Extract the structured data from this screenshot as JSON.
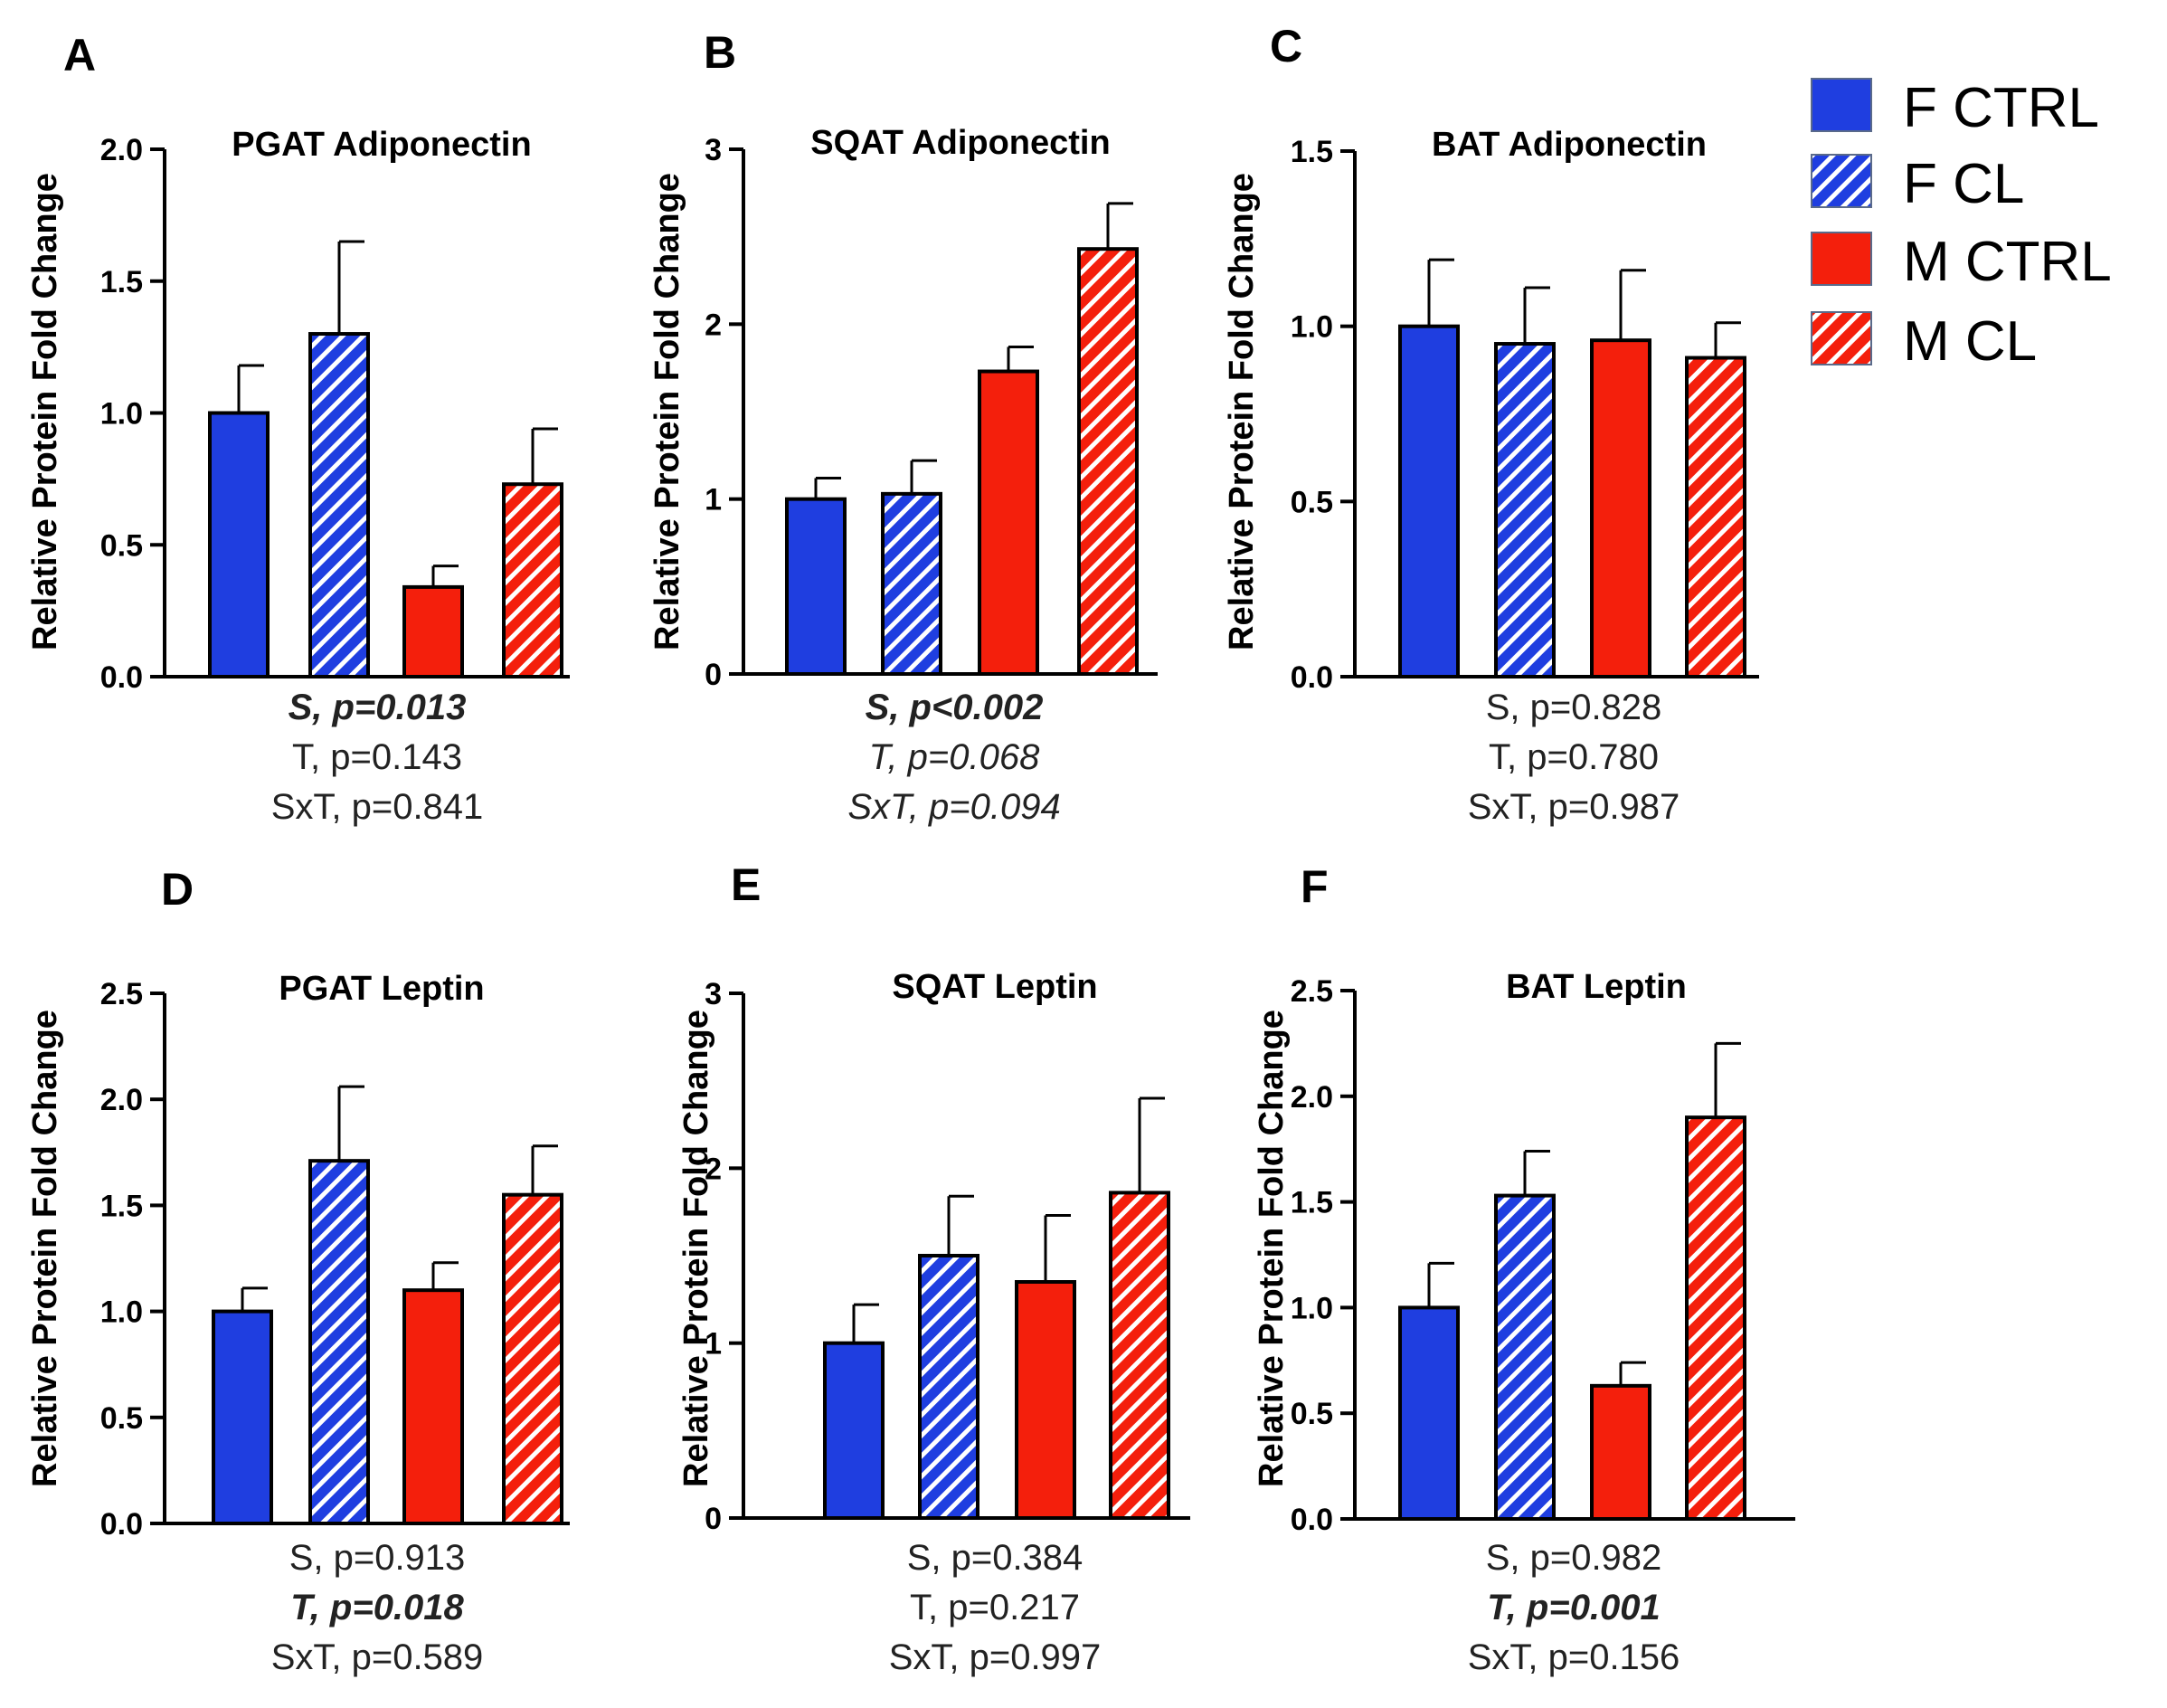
{
  "colors": {
    "blue": "#1f3ee0",
    "red": "#f41f0c",
    "stroke": "#000000"
  },
  "legend": {
    "items": [
      {
        "label": "F CTRL",
        "color": "#1f3ee0",
        "pattern": "solid"
      },
      {
        "label": "F CL",
        "color": "#1f3ee0",
        "pattern": "hatch"
      },
      {
        "label": "M CTRL",
        "color": "#f41f0c",
        "pattern": "solid"
      },
      {
        "label": "M CL",
        "color": "#f41f0c",
        "pattern": "hatch"
      }
    ]
  },
  "chart_data": [
    {
      "panel": "A",
      "type": "bar",
      "title": "PGAT Adiponectin",
      "ylabel": "Relative Protein Fold Change",
      "categories": [
        "F CTRL",
        "F CL",
        "M CTRL",
        "M CL"
      ],
      "values": [
        1.0,
        1.3,
        0.34,
        0.73
      ],
      "errors": [
        0.18,
        0.35,
        0.08,
        0.21
      ],
      "ylim": [
        0,
        2.0
      ],
      "ticks": [
        0,
        0.5,
        1.0,
        1.5,
        2.0
      ],
      "tick_labels": [
        "0.0",
        "0.5",
        "1.0",
        "1.5",
        "2.0"
      ],
      "stats": [
        {
          "text": "S, p=0.013",
          "bold": true,
          "italic": true
        },
        {
          "text": "T, p=0.143",
          "bold": false,
          "italic": false
        },
        {
          "text": "SxT, p=0.841",
          "bold": false,
          "italic": false
        }
      ]
    },
    {
      "panel": "B",
      "type": "bar",
      "title": "SQAT Adiponectin",
      "ylabel": "Relative Protein Fold Change",
      "categories": [
        "F CTRL",
        "F CL",
        "M CTRL",
        "M CL"
      ],
      "values": [
        1.0,
        1.03,
        1.73,
        2.43
      ],
      "errors": [
        0.12,
        0.19,
        0.14,
        0.26
      ],
      "ylim": [
        0,
        3
      ],
      "ticks": [
        0,
        1,
        2,
        3
      ],
      "tick_labels": [
        "0",
        "1",
        "2",
        "3"
      ],
      "stats": [
        {
          "text": "S, p<0.002",
          "bold": true,
          "italic": true
        },
        {
          "text": "T, p=0.068",
          "bold": false,
          "italic": true
        },
        {
          "text": "SxT, p=0.094",
          "bold": false,
          "italic": true
        }
      ]
    },
    {
      "panel": "C",
      "type": "bar",
      "title": "BAT Adiponectin",
      "ylabel": "Relative Protein Fold Change",
      "categories": [
        "F CTRL",
        "F CL",
        "M CTRL",
        "M CL"
      ],
      "values": [
        1.0,
        0.95,
        0.96,
        0.91
      ],
      "errors": [
        0.19,
        0.16,
        0.2,
        0.1
      ],
      "ylim": [
        0,
        1.5
      ],
      "ticks": [
        0,
        0.5,
        1.0,
        1.5
      ],
      "tick_labels": [
        "0.0",
        "0.5",
        "1.0",
        "1.5"
      ],
      "stats": [
        {
          "text": "S, p=0.828",
          "bold": false,
          "italic": false
        },
        {
          "text": "T, p=0.780",
          "bold": false,
          "italic": false
        },
        {
          "text": "SxT, p=0.987",
          "bold": false,
          "italic": false
        }
      ]
    },
    {
      "panel": "D",
      "type": "bar",
      "title": "PGAT Leptin",
      "ylabel": "Relative Protein Fold Change",
      "categories": [
        "F CTRL",
        "F CL",
        "M CTRL",
        "M CL"
      ],
      "values": [
        1.0,
        1.71,
        1.1,
        1.55
      ],
      "errors": [
        0.11,
        0.35,
        0.13,
        0.23
      ],
      "ylim": [
        0,
        2.5
      ],
      "ticks": [
        0,
        0.5,
        1.0,
        1.5,
        2.0,
        2.5
      ],
      "tick_labels": [
        "0.0",
        "0.5",
        "1.0",
        "1.5",
        "2.0",
        "2.5"
      ],
      "stats": [
        {
          "text": "S, p=0.913",
          "bold": false,
          "italic": false
        },
        {
          "text": "T, p=0.018",
          "bold": true,
          "italic": true
        },
        {
          "text": "SxT, p=0.589",
          "bold": false,
          "italic": false
        }
      ]
    },
    {
      "panel": "E",
      "type": "bar",
      "title": "SQAT Leptin",
      "ylabel": "Relative Protein Fold Change",
      "categories": [
        "F CTRL",
        "F CL",
        "M CTRL",
        "M CL"
      ],
      "values": [
        1.0,
        1.5,
        1.35,
        1.86
      ],
      "errors": [
        0.22,
        0.34,
        0.38,
        0.54
      ],
      "ylim": [
        0,
        3
      ],
      "ticks": [
        0,
        1,
        2,
        3
      ],
      "tick_labels": [
        "0",
        "1",
        "2",
        "3"
      ],
      "stats": [
        {
          "text": "S, p=0.384",
          "bold": false,
          "italic": false
        },
        {
          "text": "T, p=0.217",
          "bold": false,
          "italic": false
        },
        {
          "text": "SxT, p=0.997",
          "bold": false,
          "italic": false
        }
      ]
    },
    {
      "panel": "F",
      "type": "bar",
      "title": "BAT Leptin",
      "ylabel": "Relative Protein Fold Change",
      "categories": [
        "F CTRL",
        "F CL",
        "M CTRL",
        "M CL"
      ],
      "values": [
        1.0,
        1.53,
        0.63,
        1.9
      ],
      "errors": [
        0.21,
        0.21,
        0.11,
        0.35
      ],
      "ylim": [
        0,
        2.5
      ],
      "ticks": [
        0,
        0.5,
        1.0,
        1.5,
        2.0,
        2.5
      ],
      "tick_labels": [
        "0.0",
        "0.5",
        "1.0",
        "1.5",
        "2.0",
        "2.5"
      ],
      "stats": [
        {
          "text": "S, p=0.982",
          "bold": false,
          "italic": false
        },
        {
          "text": "T, p=0.001",
          "bold": true,
          "italic": true
        },
        {
          "text": "SxT, p=0.156",
          "bold": false,
          "italic": false
        }
      ]
    }
  ]
}
